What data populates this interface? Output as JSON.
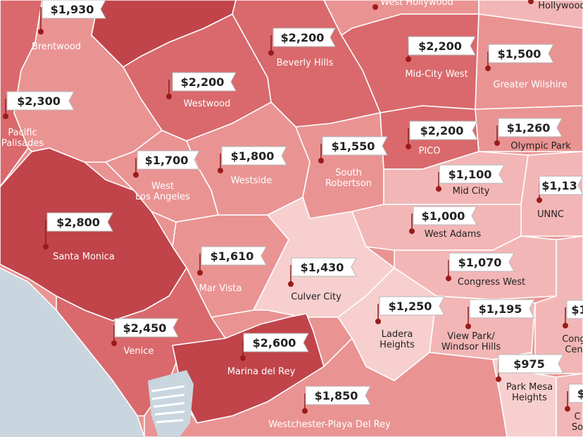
{
  "colors": {
    "ocean": "#c9d6df",
    "tier_dark": "#c0444a",
    "tier_mid": "#d9696c",
    "tier_light": "#ea9393",
    "tier_pale": "#f3b6b6",
    "tier_palest": "#f7cfcf",
    "pin": "#9b1b1b",
    "label_light_text": "#ffffff",
    "label_dark_text": "#222222"
  },
  "neighborhoods": [
    {
      "id": "brentwood",
      "name": "Brentwood",
      "price": "$1,930"
    },
    {
      "id": "west-hollywood",
      "name": "West Hollywood",
      "price": ""
    },
    {
      "id": "hollywood",
      "name": "Hollywood",
      "price": ""
    },
    {
      "id": "beverly-hills",
      "name": "Beverly Hills",
      "price": "$2,200"
    },
    {
      "id": "mid-city-west",
      "name": "Mid-City West",
      "price": "$2,200"
    },
    {
      "id": "greater-wilshire",
      "name": "Greater Wilshire",
      "price": "$1,500"
    },
    {
      "id": "pacific-palisades",
      "name": "Pacific\nPalisades",
      "price": "$2,300"
    },
    {
      "id": "westwood",
      "name": "Westwood",
      "price": "$2,200"
    },
    {
      "id": "pico",
      "name": "PICO",
      "price": "$2,200"
    },
    {
      "id": "olympic-park",
      "name": "Olympic Park",
      "price": "$1,260"
    },
    {
      "id": "south-robertson",
      "name": "South\nRobertson",
      "price": "$1,550"
    },
    {
      "id": "westside",
      "name": "Westside",
      "price": "$1,800"
    },
    {
      "id": "west-los-angeles",
      "name": "West\nLos Angeles",
      "price": "$1,700"
    },
    {
      "id": "mid-city",
      "name": "Mid City",
      "price": "$1,100"
    },
    {
      "id": "unnc",
      "name": "UNNC",
      "price": "$1,13"
    },
    {
      "id": "west-adams",
      "name": "West Adams",
      "price": "$1,000"
    },
    {
      "id": "santa-monica",
      "name": "Santa Monica",
      "price": "$2,800"
    },
    {
      "id": "mar-vista",
      "name": "Mar Vista",
      "price": "$1,610"
    },
    {
      "id": "culver-city",
      "name": "Culver City",
      "price": "$1,430"
    },
    {
      "id": "congress-west",
      "name": "Congress West",
      "price": "$1,070"
    },
    {
      "id": "ladera-heights",
      "name": "Ladera\nHeights",
      "price": "$1,250"
    },
    {
      "id": "view-park",
      "name": "View Park/\nWindsor Hills",
      "price": "$1,195"
    },
    {
      "id": "congress-central",
      "name": "Cong\nCen",
      "price": "$1"
    },
    {
      "id": "venice",
      "name": "Venice",
      "price": "$2,450"
    },
    {
      "id": "marina-del-rey",
      "name": "Marina del Rey",
      "price": "$2,600"
    },
    {
      "id": "park-mesa-heights",
      "name": "Park Mesa\nHeights",
      "price": "$975"
    },
    {
      "id": "westchester",
      "name": "Westchester-Playa Del Rey",
      "price": "$1,850"
    },
    {
      "id": "crenshaw-south",
      "name": "C\nSo",
      "price": "$"
    }
  ]
}
